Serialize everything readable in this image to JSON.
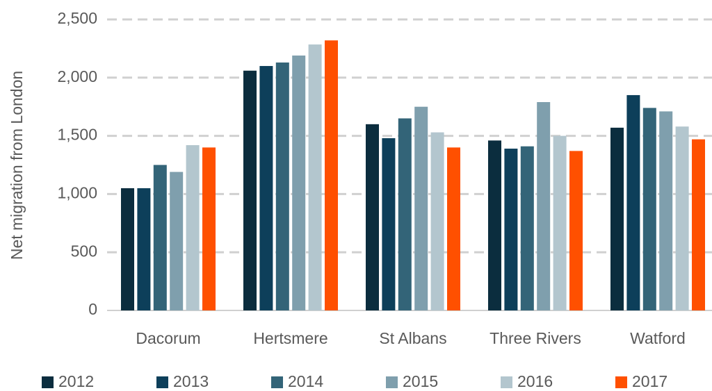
{
  "chart_data": {
    "type": "bar",
    "y_label": "Net migration from London",
    "categories": [
      "Dacorum",
      "Hertsmere",
      "St Albans",
      "Three Rivers",
      "Watford"
    ],
    "series": [
      {
        "name": "2012",
        "color": "#0b2d3e",
        "values": [
          1050,
          2060,
          1600,
          1460,
          1570
        ]
      },
      {
        "name": "2013",
        "color": "#0d3f5a",
        "values": [
          1050,
          2100,
          1480,
          1390,
          1850
        ]
      },
      {
        "name": "2014",
        "color": "#336478",
        "values": [
          1250,
          2130,
          1650,
          1410,
          1740
        ]
      },
      {
        "name": "2015",
        "color": "#7f9fad",
        "values": [
          1190,
          2190,
          1750,
          1790,
          1710
        ]
      },
      {
        "name": "2016",
        "color": "#b3c6ce",
        "values": [
          1420,
          2285,
          1530,
          1500,
          1580
        ]
      },
      {
        "name": "2017",
        "color": "#ff5000",
        "values": [
          1400,
          2320,
          1400,
          1370,
          1470
        ]
      }
    ],
    "ylim": [
      0,
      2500
    ],
    "yticks": [
      0,
      500,
      {
        "value": 1000,
        "label": "1,000"
      },
      {
        "value": 1500,
        "label": "1,500"
      },
      {
        "value": 2000,
        "label": "2,000"
      },
      {
        "value": 2500,
        "label": "2,500"
      }
    ],
    "grid": true,
    "legend": "bottom"
  }
}
